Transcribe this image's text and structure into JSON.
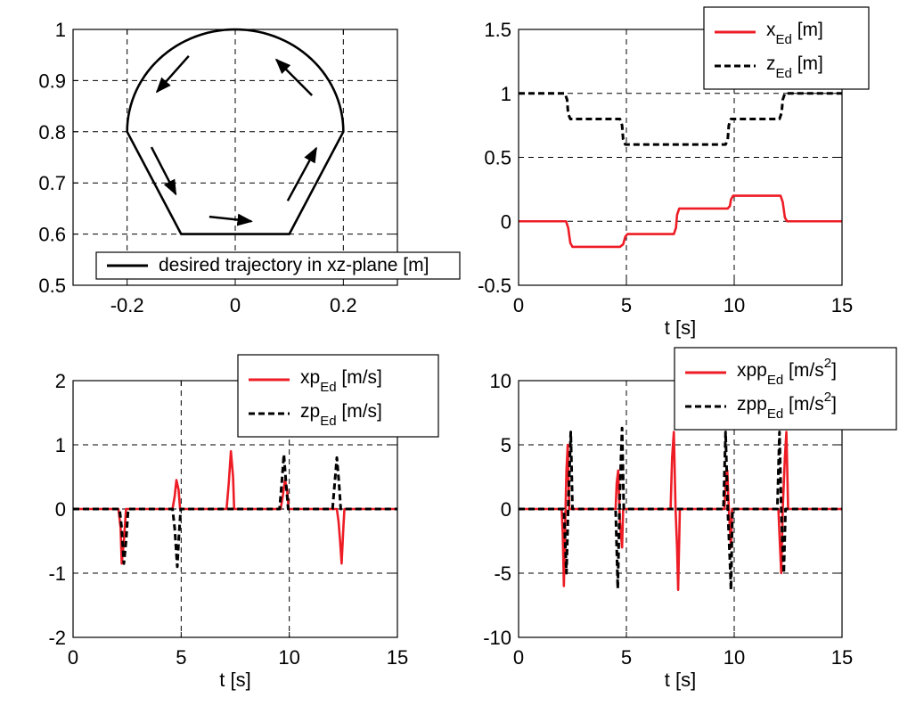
{
  "chart_data": [
    {
      "type": "line",
      "title": "",
      "xlabel": "",
      "ylabel": "",
      "xlim": [
        -0.3,
        0.3
      ],
      "ylim": [
        0.5,
        1.0
      ],
      "grid": true,
      "xticks": [
        -0.2,
        0,
        0.2
      ],
      "xtick_labels": [
        "-0.2",
        "0",
        "0.2"
      ],
      "yticks": [
        0.5,
        0.6,
        0.7,
        0.8,
        0.9,
        1.0
      ],
      "ytick_labels": [
        "0.5",
        "0.6",
        "0.7",
        "0.8",
        "0.9",
        "1"
      ],
      "legend_placement": "bottom",
      "series": [
        {
          "name": "desired trajectory in xz-plane [m]",
          "legend": {
            "base": "desired trajectory in xz-plane [m]"
          },
          "color": "#000000",
          "dash": false,
          "shape": "line segments (-0.1,0.6)->(0.1,0.6)->(0.2,0.8), arc centre (0,0.8) r 0.2 through (0,1) to (-0.2,0.8), then ->(-0.1,0.6)",
          "points": "trajectory"
        }
      ],
      "annotations": {
        "arrows": [
          {
            "from": [
              -0.086,
              0.948
            ],
            "to": [
              -0.145,
              0.878
            ]
          },
          {
            "from": [
              -0.155,
              0.77
            ],
            "to": [
              -0.11,
              0.678
            ]
          },
          {
            "from": [
              -0.048,
              0.634
            ],
            "to": [
              0.03,
              0.625
            ]
          },
          {
            "from": [
              0.097,
              0.665
            ],
            "to": [
              0.15,
              0.768
            ]
          },
          {
            "from": [
              0.142,
              0.871
            ],
            "to": [
              0.076,
              0.941
            ]
          }
        ]
      }
    },
    {
      "type": "line",
      "xlabel": "t [s]",
      "ylabel": "",
      "xlim": [
        0,
        15
      ],
      "ylim": [
        -0.5,
        1.5
      ],
      "grid": true,
      "xticks": [
        0,
        5,
        10,
        15
      ],
      "xtick_labels": [
        "0",
        "5",
        "10",
        "15"
      ],
      "yticks": [
        -0.5,
        0,
        0.5,
        1,
        1.5
      ],
      "ytick_labels": [
        "-0.5",
        "0",
        "0.5",
        "1",
        "1.5"
      ],
      "legend_placement": "top-right",
      "series": [
        {
          "name": "x_Ed [m]",
          "legend": {
            "base": "x",
            "sub": "Ed",
            "unit": " [m]"
          },
          "color": "#ee1c25",
          "dash": false,
          "points": [
            [
              0,
              0
            ],
            [
              2.2,
              0
            ],
            [
              2.3,
              -0.05
            ],
            [
              2.4,
              -0.17
            ],
            [
              2.5,
              -0.2
            ],
            [
              4.7,
              -0.2
            ],
            [
              4.85,
              -0.18
            ],
            [
              4.95,
              -0.12
            ],
            [
              5.05,
              -0.1
            ],
            [
              7.2,
              -0.1
            ],
            [
              7.3,
              -0.05
            ],
            [
              7.35,
              0.05
            ],
            [
              7.45,
              0.1
            ],
            [
              9.7,
              0.1
            ],
            [
              9.8,
              0.12
            ],
            [
              9.85,
              0.17
            ],
            [
              9.95,
              0.2
            ],
            [
              12.15,
              0.2
            ],
            [
              12.25,
              0.15
            ],
            [
              12.35,
              0.03
            ],
            [
              12.45,
              0
            ],
            [
              15,
              0
            ]
          ]
        },
        {
          "name": "z_Ed [m]",
          "legend": {
            "base": "z",
            "sub": "Ed",
            "unit": " [m]"
          },
          "color": "#000000",
          "dash": true,
          "points": [
            [
              0,
              1
            ],
            [
              2.15,
              1
            ],
            [
              2.25,
              0.95
            ],
            [
              2.3,
              0.84
            ],
            [
              2.4,
              0.8
            ],
            [
              4.7,
              0.8
            ],
            [
              4.8,
              0.75
            ],
            [
              4.85,
              0.64
            ],
            [
              4.95,
              0.6
            ],
            [
              9.6,
              0.6
            ],
            [
              9.7,
              0.64
            ],
            [
              9.75,
              0.75
            ],
            [
              9.85,
              0.8
            ],
            [
              12.1,
              0.8
            ],
            [
              12.2,
              0.85
            ],
            [
              12.25,
              0.95
            ],
            [
              12.35,
              1
            ],
            [
              15,
              1
            ]
          ]
        }
      ]
    },
    {
      "type": "line",
      "xlabel": "t [s]",
      "ylabel": "",
      "xlim": [
        0,
        15
      ],
      "ylim": [
        -2,
        2
      ],
      "grid": true,
      "xticks": [
        0,
        5,
        10,
        15
      ],
      "xtick_labels": [
        "0",
        "5",
        "10",
        "15"
      ],
      "yticks": [
        -2,
        -1,
        0,
        1,
        2
      ],
      "ytick_labels": [
        "-2",
        "-1",
        "0",
        "1",
        "2"
      ],
      "legend_placement": "top-right",
      "series": [
        {
          "name": "xp_Ed [m/s]",
          "legend": {
            "base": "xp",
            "sub": "Ed",
            "unit": " [m/s]"
          },
          "color": "#ee1c25",
          "dash": false,
          "points": [
            [
              0,
              0
            ],
            [
              2.1,
              0
            ],
            [
              2.2,
              -0.3
            ],
            [
              2.25,
              -0.85
            ],
            [
              2.35,
              -0.5
            ],
            [
              2.45,
              0
            ],
            [
              4.6,
              0
            ],
            [
              4.7,
              0.2
            ],
            [
              4.78,
              0.45
            ],
            [
              4.88,
              0.3
            ],
            [
              4.95,
              0
            ],
            [
              7.1,
              0
            ],
            [
              7.2,
              0.4
            ],
            [
              7.3,
              0.9
            ],
            [
              7.4,
              0.5
            ],
            [
              7.45,
              0
            ],
            [
              9.6,
              0
            ],
            [
              9.7,
              0.2
            ],
            [
              9.8,
              0.45
            ],
            [
              9.9,
              0.3
            ],
            [
              9.97,
              0
            ],
            [
              12.2,
              0
            ],
            [
              12.28,
              -0.2
            ],
            [
              12.35,
              -0.5
            ],
            [
              12.42,
              -0.85
            ],
            [
              12.5,
              -0.3
            ],
            [
              12.55,
              0
            ],
            [
              15,
              0
            ]
          ]
        },
        {
          "name": "zp_Ed [m/s]",
          "legend": {
            "base": "zp",
            "sub": "Ed",
            "unit": " [m/s]"
          },
          "color": "#000000",
          "dash": true,
          "points": [
            [
              0,
              0
            ],
            [
              2.15,
              0
            ],
            [
              2.25,
              -0.3
            ],
            [
              2.35,
              -0.85
            ],
            [
              2.45,
              -0.5
            ],
            [
              2.55,
              0
            ],
            [
              4.6,
              0
            ],
            [
              4.7,
              -0.3
            ],
            [
              4.82,
              -0.9
            ],
            [
              4.9,
              -0.4
            ],
            [
              4.98,
              0
            ],
            [
              9.55,
              0
            ],
            [
              9.65,
              0.4
            ],
            [
              9.75,
              0.85
            ],
            [
              9.85,
              0.4
            ],
            [
              9.95,
              0
            ],
            [
              12.0,
              0
            ],
            [
              12.1,
              0.4
            ],
            [
              12.2,
              0.8
            ],
            [
              12.3,
              0.4
            ],
            [
              12.38,
              0
            ],
            [
              15,
              0
            ]
          ]
        }
      ]
    },
    {
      "type": "line",
      "xlabel": "t [s]",
      "ylabel": "",
      "xlim": [
        0,
        15
      ],
      "ylim": [
        -10,
        10
      ],
      "grid": true,
      "xticks": [
        0,
        5,
        10,
        15
      ],
      "xtick_labels": [
        "0",
        "5",
        "10",
        "15"
      ],
      "yticks": [
        -10,
        -5,
        0,
        5,
        10
      ],
      "ytick_labels": [
        "-10",
        "-5",
        "0",
        "5",
        "10"
      ],
      "legend_placement": "top-right",
      "series": [
        {
          "name": "xpp_Ed [m/s^2]",
          "legend": {
            "base": "xpp",
            "sub": "Ed",
            "unit": " [m/s",
            "sup": "2",
            "unit_end": "]"
          },
          "color": "#ee1c25",
          "dash": false,
          "points": [
            [
              0,
              0
            ],
            [
              2.0,
              0
            ],
            [
              2.05,
              -2
            ],
            [
              2.1,
              -6
            ],
            [
              2.15,
              -2
            ],
            [
              2.22,
              3
            ],
            [
              2.28,
              5
            ],
            [
              2.35,
              0
            ],
            [
              4.5,
              0
            ],
            [
              4.55,
              2
            ],
            [
              4.62,
              3
            ],
            [
              4.7,
              -1
            ],
            [
              4.8,
              -3
            ],
            [
              4.85,
              0
            ],
            [
              7.05,
              0
            ],
            [
              7.12,
              4
            ],
            [
              7.2,
              6
            ],
            [
              7.28,
              0
            ],
            [
              7.35,
              -3
            ],
            [
              7.4,
              -6.3
            ],
            [
              7.48,
              0
            ],
            [
              9.55,
              0
            ],
            [
              9.6,
              2
            ],
            [
              9.68,
              3
            ],
            [
              9.75,
              0
            ],
            [
              9.85,
              -3
            ],
            [
              9.9,
              0
            ],
            [
              12.05,
              0
            ],
            [
              12.1,
              -2
            ],
            [
              12.18,
              -5
            ],
            [
              12.25,
              0
            ],
            [
              12.35,
              4
            ],
            [
              12.42,
              6
            ],
            [
              12.5,
              0
            ],
            [
              15,
              0
            ]
          ]
        },
        {
          "name": "zpp_Ed [m/s^2]",
          "legend": {
            "base": "zpp",
            "sub": "Ed",
            "unit": " [m/s",
            "sup": "2",
            "unit_end": "]"
          },
          "color": "#000000",
          "dash": true,
          "points": [
            [
              0,
              0
            ],
            [
              2.1,
              0
            ],
            [
              2.15,
              -2
            ],
            [
              2.22,
              -5
            ],
            [
              2.3,
              0
            ],
            [
              2.38,
              4
            ],
            [
              2.42,
              6
            ],
            [
              2.5,
              0
            ],
            [
              4.5,
              0
            ],
            [
              4.55,
              -3
            ],
            [
              4.6,
              -6.2
            ],
            [
              4.68,
              0
            ],
            [
              4.75,
              4
            ],
            [
              4.8,
              6.3
            ],
            [
              4.88,
              0
            ],
            [
              9.5,
              0
            ],
            [
              9.55,
              3
            ],
            [
              9.6,
              6
            ],
            [
              9.7,
              0
            ],
            [
              9.8,
              -4
            ],
            [
              9.85,
              -6.3
            ],
            [
              9.92,
              0
            ],
            [
              12.0,
              0
            ],
            [
              12.05,
              3
            ],
            [
              12.1,
              6
            ],
            [
              12.18,
              0
            ],
            [
              12.25,
              -3
            ],
            [
              12.3,
              -5
            ],
            [
              12.38,
              0
            ],
            [
              15,
              0
            ]
          ]
        }
      ]
    }
  ]
}
